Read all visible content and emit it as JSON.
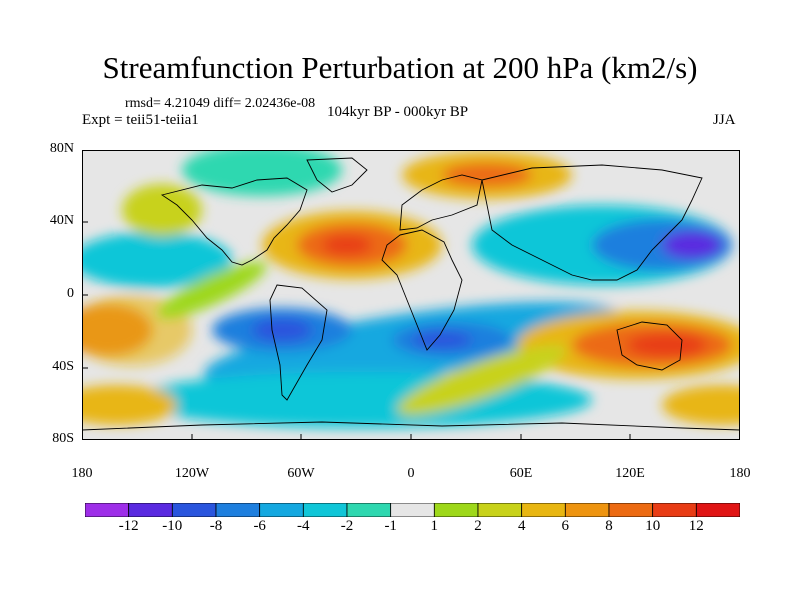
{
  "figure": {
    "title": "Streamfunction Perturbation at 200 hPa (km2/s)",
    "stats": "rmsd= 4.21049 diff= 2.02436e-08",
    "experiment": "Expt = teii51-teiia1",
    "period": "104kyr BP - 000kyr BP",
    "season": "JJA"
  },
  "map": {
    "y_axis_labels": [
      "80N",
      "40N",
      "0",
      "40S",
      "80S"
    ],
    "x_axis_labels": [
      "180",
      "120W",
      "60W",
      "0",
      "60E",
      "120E",
      "180"
    ],
    "background_color": "#e6e6e6"
  },
  "colorbar": {
    "labels": [
      "-12",
      "-10",
      "-8",
      "-6",
      "-4",
      "-2",
      "-1",
      "1",
      "2",
      "4",
      "6",
      "8",
      "10",
      "12"
    ],
    "colors": [
      "#9e2ee8",
      "#5a2ae0",
      "#2a55dd",
      "#1e7fde",
      "#14a8e0",
      "#10c6d8",
      "#2ed8b0",
      "#e6e6e6",
      "#9ed81a",
      "#c8d21a",
      "#e8b612",
      "#ee9410",
      "#ec6a12",
      "#e83c14",
      "#e01414"
    ]
  }
}
